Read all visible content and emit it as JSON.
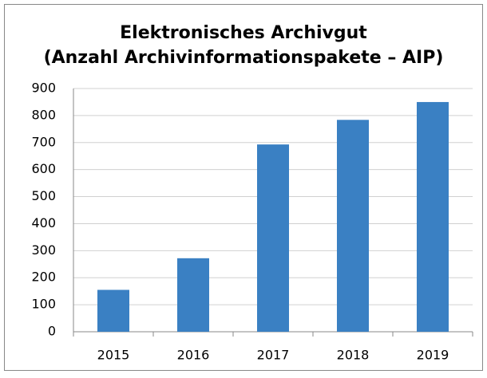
{
  "chart_data": {
    "type": "bar",
    "title": [
      "Elektronisches Archivgut",
      "(Anzahl Archivinformationspakete – AIP)"
    ],
    "categories": [
      "2015",
      "2016",
      "2017",
      "2018",
      "2019"
    ],
    "values": [
      155,
      272,
      693,
      784,
      850
    ],
    "color": "#3a80c3",
    "ylim": [
      0,
      900
    ],
    "yticks": [
      0,
      100,
      200,
      300,
      400,
      500,
      600,
      700,
      800,
      900
    ],
    "grid": true
  }
}
